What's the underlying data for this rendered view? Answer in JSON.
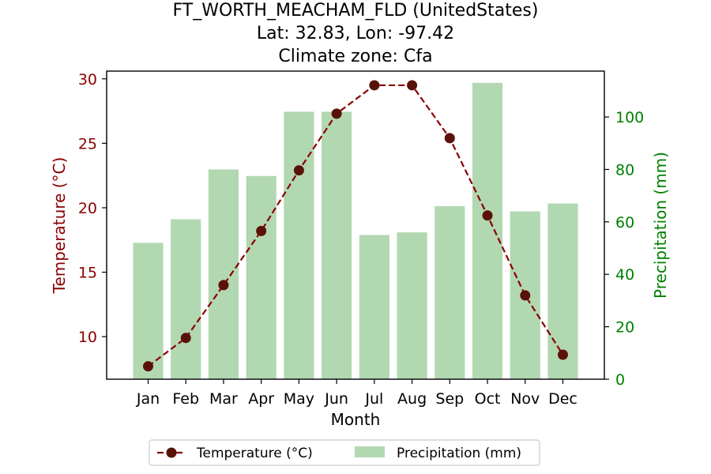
{
  "chart_data": {
    "type": "bar+line",
    "title_lines": [
      "FT_WORTH_MEACHAM_FLD (UnitedStates)",
      "Lat: 32.83, Lon: -97.42",
      "Climate zone: Cfa"
    ],
    "xlabel": "Month",
    "ylabel_left": "Temperature (°C)",
    "ylabel_right": "Precipitation (mm)",
    "categories": [
      "Jan",
      "Feb",
      "Mar",
      "Apr",
      "May",
      "Jun",
      "Jul",
      "Aug",
      "Sep",
      "Oct",
      "Nov",
      "Dec"
    ],
    "series": [
      {
        "name": "Temperature (°C)",
        "type": "line",
        "axis": "left",
        "values": [
          7.7,
          9.9,
          14.0,
          18.2,
          22.9,
          27.3,
          29.5,
          29.5,
          25.4,
          19.4,
          13.2,
          8.6
        ]
      },
      {
        "name": "Precipitation (mm)",
        "type": "bar",
        "axis": "right",
        "values": [
          52,
          61,
          80,
          77.5,
          102,
          102,
          55,
          56,
          66,
          113,
          64,
          67
        ]
      }
    ],
    "ylim_left": [
      6.7,
      30.6
    ],
    "yticks_left": [
      10,
      15,
      20,
      25,
      30
    ],
    "ylim_right": [
      0,
      117.5
    ],
    "yticks_right": [
      0,
      20,
      40,
      60,
      80,
      100
    ],
    "legend_position": "bottom-center",
    "colors": {
      "temperature": "#8b0000",
      "temperature_marker": "#5a1208",
      "precipitation": "#b2d8b2",
      "right_axis": "#008000",
      "left_axis": "#8b0000"
    }
  }
}
